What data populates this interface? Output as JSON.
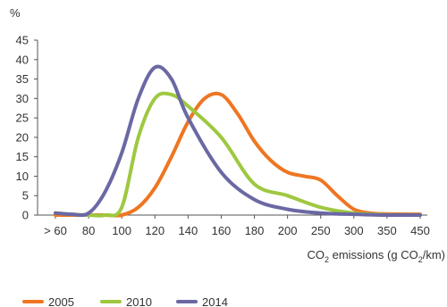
{
  "chart_data": {
    "type": "line",
    "ylabel": "%",
    "xlabel_parts": [
      "CO",
      "2",
      " emissions (g CO",
      "2",
      "/km)"
    ],
    "ylim": [
      0,
      45
    ],
    "y_ticks": [
      0,
      5,
      10,
      15,
      20,
      25,
      30,
      35,
      40,
      45
    ],
    "x_ticks": [
      "> 60",
      "80",
      "100",
      "120",
      "140",
      "160",
      "180",
      "200",
      "250",
      "300",
      "350",
      "450"
    ],
    "grid": false,
    "legend_position": "bottom-left",
    "series": [
      {
        "name": "2005",
        "color": "#ee7622",
        "points": [
          [
            0.0,
            0
          ],
          [
            0.5,
            0
          ],
          [
            1.0,
            0
          ],
          [
            1.5,
            0
          ],
          [
            2.0,
            0
          ],
          [
            2.5,
            2
          ],
          [
            3.0,
            7
          ],
          [
            3.5,
            15
          ],
          [
            4.0,
            24
          ],
          [
            4.5,
            30
          ],
          [
            5.0,
            31
          ],
          [
            5.5,
            26
          ],
          [
            6.0,
            19
          ],
          [
            6.5,
            14
          ],
          [
            7.0,
            11
          ],
          [
            7.5,
            10
          ],
          [
            8.0,
            9
          ],
          [
            8.5,
            5
          ],
          [
            9.0,
            1.5
          ],
          [
            9.5,
            0.5
          ],
          [
            10.0,
            0.3
          ],
          [
            11.0,
            0.2
          ]
        ]
      },
      {
        "name": "2010",
        "color": "#9ec840",
        "points": [
          [
            0.0,
            0.5
          ],
          [
            0.5,
            0.2
          ],
          [
            1.0,
            0
          ],
          [
            1.5,
            0
          ],
          [
            2.0,
            2
          ],
          [
            2.5,
            20
          ],
          [
            3.0,
            30
          ],
          [
            3.5,
            31
          ],
          [
            4.0,
            28
          ],
          [
            5.0,
            20
          ],
          [
            6.0,
            8
          ],
          [
            7.0,
            5
          ],
          [
            8.0,
            2
          ],
          [
            9.0,
            0.5
          ],
          [
            10.0,
            0.1
          ],
          [
            11.0,
            0
          ]
        ]
      },
      {
        "name": "2014",
        "color": "#6b68a4",
        "points": [
          [
            0.0,
            0.5
          ],
          [
            0.5,
            0.2
          ],
          [
            1.0,
            0.5
          ],
          [
            1.5,
            6
          ],
          [
            2.0,
            16
          ],
          [
            2.5,
            30
          ],
          [
            3.0,
            38
          ],
          [
            3.5,
            35
          ],
          [
            4.0,
            25
          ],
          [
            5.0,
            11
          ],
          [
            6.0,
            4
          ],
          [
            7.0,
            1.5
          ],
          [
            8.0,
            0.5
          ],
          [
            9.0,
            0.2
          ],
          [
            10.0,
            0
          ],
          [
            11.0,
            0
          ]
        ]
      }
    ]
  }
}
